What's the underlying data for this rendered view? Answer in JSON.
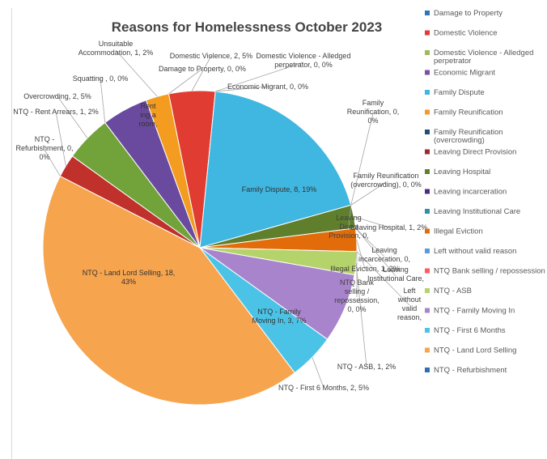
{
  "chart_data": {
    "type": "pie",
    "title": "Reasons for Homelessness October 2023",
    "legend_position": "right",
    "series": [
      {
        "name": "Damage to Property",
        "value": 0,
        "percent": "0%",
        "color": "#2e75b6",
        "label": "Damage to Property, 0, 0%"
      },
      {
        "name": "Domestic Violence",
        "value": 2,
        "percent": "5%",
        "color": "#e03c31",
        "label": "Domestic Violence, 2, 5%"
      },
      {
        "name": "Domestic Violence - Alledged perpetrator",
        "value": 0,
        "percent": "0%",
        "color": "#9bbb59",
        "label": "Domestic Violence - Alledged perpetrator, 0, 0%"
      },
      {
        "name": "Economic Migrant",
        "value": 0,
        "percent": "0%",
        "color": "#7f4fa1",
        "label": "Economic Migrant, 0, 0%"
      },
      {
        "name": "Family Dispute",
        "value": 8,
        "percent": "19%",
        "color": "#3fb7e0",
        "label": "Family Dispute, 8, 19%"
      },
      {
        "name": "Family Reunification",
        "value": 0,
        "percent": "0%",
        "color": "#f7962d",
        "label": "Family Reunification, 0, 0%"
      },
      {
        "name": "Family Reunification (overcrowding)",
        "value": 0,
        "percent": "0%",
        "color": "#1f4e79",
        "label": "Family Reunification (overcrowding), 0, 0%"
      },
      {
        "name": "Leaving Direct Provision",
        "value": 0,
        "percent": "0%",
        "color": "#9e2a2b",
        "label": "Leaving Direct Provision, 0, 0%"
      },
      {
        "name": "Leaving Hospital",
        "value": 1,
        "percent": "2%",
        "color": "#5f7f2d",
        "label": "Leaving Hospital, 1, 2%"
      },
      {
        "name": "Leaving incarceration",
        "value": 0,
        "percent": "0%",
        "color": "#4b2e83",
        "label": "Leaving incarceration, 0, 0%"
      },
      {
        "name": "Leaving Institutional Care",
        "value": 0,
        "percent": "0%",
        "color": "#2f8fa8",
        "label": "Leaving Institutional Care, 0, 0%"
      },
      {
        "name": "Illegal Eviction",
        "value": 1,
        "percent": "2%",
        "color": "#e36c0a",
        "label": "Illegal Eviction, 1, 2%"
      },
      {
        "name": "Left without valid reason",
        "value": 0,
        "percent": "0%",
        "color": "#5b9bd5",
        "label": "Left without valid reason, 0, 0%"
      },
      {
        "name": "NTQ Bank selling / repossession",
        "value": 0,
        "percent": "0%",
        "color": "#ff5b5b",
        "label": "NTQ Bank selling / repossession, 0, 0%"
      },
      {
        "name": "NTQ - ASB",
        "value": 1,
        "percent": "2%",
        "color": "#b5d36b",
        "label": "NTQ - ASB, 1, 2%"
      },
      {
        "name": "NTQ - Family Moving In",
        "value": 3,
        "percent": "7%",
        "color": "#a884cc",
        "label": "NTQ - Family Moving In, 3, 7%"
      },
      {
        "name": "NTQ - First 6 Months",
        "value": 2,
        "percent": "5%",
        "color": "#4bc3e6",
        "label": "NTQ - First 6 Months, 2, 5%"
      },
      {
        "name": "NTQ - Land Lord Selling",
        "value": 18,
        "percent": "43%",
        "color": "#f6a44e",
        "label": "NTQ - Land Lord Selling, 18, 43%"
      },
      {
        "name": "NTQ - Refurbishment",
        "value": 0,
        "percent": "0%",
        "color": "#2e6fb0",
        "label": "NTQ - Refurbishment, 0, 0%"
      },
      {
        "name": "NTQ - Rent Arrears",
        "value": 1,
        "percent": "2%",
        "color": "#c0312b",
        "label": "NTQ - Rent Arrears, 1, 2%"
      },
      {
        "name": "Overcrowding",
        "value": 2,
        "percent": "5%",
        "color": "#72a33a",
        "label": "Overcrowding, 2, 5%"
      },
      {
        "name": "Squatting",
        "value": 0,
        "percent": "0%",
        "color": "#3f2a6e",
        "label": "Squatting , 0, 0%"
      },
      {
        "name": "Rent ing a room",
        "value": 2,
        "percent": "5%",
        "color": "#6a4a9e",
        "label": "Rent ing a room, 2, 5%"
      },
      {
        "name": "Unsuitable Accommodation",
        "value": 1,
        "percent": "2%",
        "color": "#f39c1f",
        "label": "Unsuitable Accommodation, 1, 2%"
      }
    ],
    "legend_entries": [
      {
        "name": "Damage to Property",
        "color": "#2e75b6"
      },
      {
        "name": "Domestic Violence",
        "color": "#e03c31"
      },
      {
        "name": "Domestic Violence - Alledged perpetrator",
        "color": "#9bbb59"
      },
      {
        "name": "Economic Migrant",
        "color": "#7f4fa1"
      },
      {
        "name": "Family Dispute",
        "color": "#3fb7e0"
      },
      {
        "name": "Family Reunification",
        "color": "#f7962d"
      },
      {
        "name": "Family Reunification (overcrowding)",
        "color": "#1f4e79"
      },
      {
        "name": "Leaving Direct Provision",
        "color": "#9e2a2b"
      },
      {
        "name": "Leaving Hospital",
        "color": "#5f7f2d"
      },
      {
        "name": "Leaving incarceration",
        "color": "#4b2e83"
      },
      {
        "name": "Leaving Institutional Care",
        "color": "#2f8fa8"
      },
      {
        "name": "Illegal Eviction",
        "color": "#e36c0a"
      },
      {
        "name": "Left without valid reason",
        "color": "#5b9bd5"
      },
      {
        "name": "NTQ Bank selling / repossession",
        "color": "#ff5b5b"
      },
      {
        "name": "NTQ - ASB",
        "color": "#b5d36b"
      },
      {
        "name": "NTQ - Family Moving In",
        "color": "#a884cc"
      },
      {
        "name": "NTQ -  First 6 Months",
        "color": "#4bc3e6"
      },
      {
        "name": "NTQ - Land Lord Selling",
        "color": "#f6a44e"
      },
      {
        "name": "NTQ - Refurbishment",
        "color": "#2e6fb0"
      }
    ]
  }
}
